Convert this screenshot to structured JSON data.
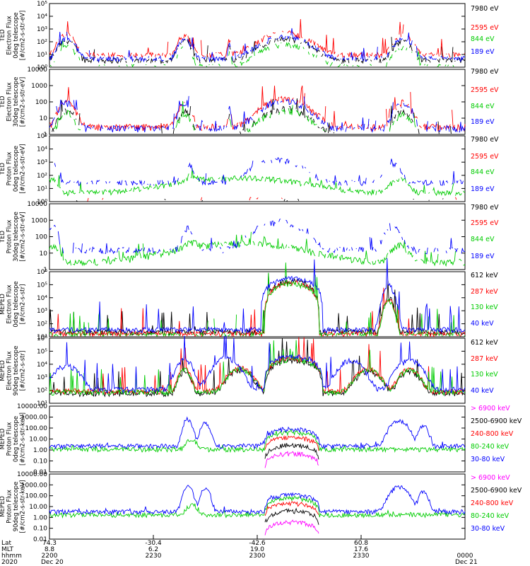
{
  "chart_data": {
    "type": "line",
    "time_axis": {
      "tick_labels": [
        "2200",
        "2230",
        "2300",
        "2330",
        "0000"
      ],
      "tick_minutes_from_2200": [
        0,
        30,
        60,
        90,
        120
      ],
      "rows": [
        {
          "label": "Lat",
          "values": [
            "74.3",
            "-30.4",
            "-42.6",
            "60.8",
            ""
          ]
        },
        {
          "label": "MLT",
          "values": [
            "8.8",
            "6.2",
            "19.0",
            "17.6",
            ""
          ]
        },
        {
          "label": "hhmm",
          "values": [
            "2200",
            "2230",
            "2300",
            "2330",
            "0000"
          ]
        }
      ],
      "date_start": "Dec 20",
      "year": "2020",
      "date_end": "Dec 21"
    },
    "panels": [
      {
        "id": "ted-e-0",
        "ylabel": [
          "TED",
          "Electron Flux",
          "0deg telescope",
          "[#/cm2-s-str-eV]"
        ],
        "scale": "log",
        "ylim": [
          1,
          100000
        ],
        "tick_labels": [
          "10⁰",
          "10¹",
          "10²",
          "10³",
          "10⁴",
          "10⁵"
        ],
        "tick_values": [
          1,
          10,
          100,
          1000,
          10000,
          100000
        ],
        "series": [
          {
            "name": "7980 eV",
            "color": "#000000",
            "kind": "electron",
            "level": 180,
            "top": 12,
            "dropout": 0.25
          },
          {
            "name": "2595 eV",
            "color": "#ff0000",
            "kind": "electron",
            "level": 500,
            "top": 18,
            "dropout": 0.2
          },
          {
            "name": "844 eV",
            "color": "#00cc00",
            "kind": "electron",
            "level": 60,
            "top": 8,
            "dropout": 0.3
          },
          {
            "name": "189 eV",
            "color": "#0000ff",
            "kind": "electron",
            "level": 250,
            "top": 6,
            "dropout": 0.2
          }
        ]
      },
      {
        "id": "ted-e-90",
        "ylabel": [
          "TED",
          "Electron Flux",
          "30deg telescope",
          "[#/cm2-s-str-eV]"
        ],
        "scale": "log",
        "ylim": [
          1,
          10000
        ],
        "tick_labels": [
          "1",
          "10",
          "100",
          "1000",
          "10000"
        ],
        "tick_values": [
          1,
          10,
          100,
          1000,
          10000
        ],
        "series": [
          {
            "name": "7980 eV",
            "color": "#000000",
            "kind": "electron",
            "level": 40,
            "top": 8,
            "dropout": 0.25
          },
          {
            "name": "2595 eV",
            "color": "#ff0000",
            "kind": "electron",
            "level": 150,
            "top": 12,
            "dropout": 0.15
          },
          {
            "name": "844 eV",
            "color": "#00cc00",
            "kind": "electron",
            "level": 30,
            "top": 6,
            "dropout": 0.2
          },
          {
            "name": "189 eV",
            "color": "#0000ff",
            "kind": "electron",
            "level": 120,
            "top": 4,
            "dropout": 0.2
          }
        ]
      },
      {
        "id": "ted-p-0",
        "ylabel": [
          "TED",
          "Proton Flux",
          "0deg telescope",
          "[#/cm2-s-str-eV]"
        ],
        "scale": "log",
        "ylim": [
          1,
          100000
        ],
        "tick_labels": [
          "10⁰",
          "10¹",
          "10²",
          "10³",
          "10⁴",
          "10⁵"
        ],
        "tick_values": [
          1,
          10,
          100,
          1000,
          10000,
          100000
        ],
        "series": [
          {
            "name": "7980 eV",
            "color": "#000000",
            "kind": "sparse",
            "level": 3,
            "top": 1,
            "dropout": 0.85
          },
          {
            "name": "2595 eV",
            "color": "#ff0000",
            "kind": "sparse",
            "level": 4,
            "top": 1,
            "dropout": 0.85
          },
          {
            "name": "844 eV",
            "color": "#00cc00",
            "kind": "proton",
            "level": 100,
            "top": 4,
            "dropout": 0.1
          },
          {
            "name": "189 eV",
            "color": "#0000ff",
            "kind": "proton-hi",
            "level": 1500,
            "top": 4,
            "dropout": 0.35
          }
        ]
      },
      {
        "id": "ted-p-90",
        "ylabel": [
          "TED",
          "Proton Flux",
          "30deg telescope",
          "[#/cm2-s-str-eV]"
        ],
        "scale": "log",
        "ylim": [
          1,
          10000
        ],
        "tick_labels": [
          "1",
          "10",
          "100",
          "1000",
          "10000"
        ],
        "tick_values": [
          1,
          10,
          100,
          1000,
          10000
        ],
        "series": [
          {
            "name": "7980 eV",
            "color": "#000000",
            "kind": "sparse",
            "level": 2,
            "top": 1,
            "dropout": 0.95
          },
          {
            "name": "2595 eV",
            "color": "#ff0000",
            "kind": "sparse",
            "level": 2,
            "top": 1,
            "dropout": 0.97
          },
          {
            "name": "844 eV",
            "color": "#00cc00",
            "kind": "proton",
            "level": 60,
            "top": 4,
            "dropout": 0.1
          },
          {
            "name": "189 eV",
            "color": "#0000ff",
            "kind": "proton-hi",
            "level": 800,
            "top": 4,
            "dropout": 0.35
          }
        ]
      },
      {
        "id": "meped-e-0",
        "ylabel": [
          "MEPED",
          "Electron Flux",
          "0deg telescope",
          "[#/cm2-s-str]"
        ],
        "scale": "log",
        "ylim": [
          10,
          1000000
        ],
        "tick_labels": [
          "10¹",
          "10²",
          "10³",
          "10⁴",
          "10⁵",
          "10⁶"
        ],
        "tick_values": [
          10,
          100,
          1000,
          10000,
          100000,
          1000000
        ],
        "series": [
          {
            "name": "612 keV",
            "color": "#000000",
            "kind": "meped",
            "level": 200000,
            "top": 60,
            "dropout": 0.0
          },
          {
            "name": "287 keV",
            "color": "#ff0000",
            "kind": "meped",
            "level": 150000,
            "top": 80,
            "dropout": 0.0
          },
          {
            "name": "130 keV",
            "color": "#00cc00",
            "kind": "meped",
            "level": 120000,
            "top": 70,
            "dropout": 0.0
          },
          {
            "name": "40 keV",
            "color": "#0000ff",
            "kind": "meped-hi",
            "level": 300000,
            "top": 100,
            "dropout": 0.0
          }
        ]
      },
      {
        "id": "meped-e-90",
        "ylabel": [
          "MEPED",
          "Electron Flux",
          "90deg telescope",
          "[#/cm2-s-str]"
        ],
        "scale": "log",
        "ylim": [
          10,
          1000000
        ],
        "tick_labels": [
          "10¹",
          "10²",
          "10³",
          "10⁴",
          "10⁵",
          "10⁶"
        ],
        "tick_values": [
          10,
          100,
          1000,
          10000,
          100000,
          1000000
        ],
        "series": [
          {
            "name": "612 keV",
            "color": "#000000",
            "kind": "meped90",
            "level": 20000,
            "top": 60,
            "dropout": 0.0
          },
          {
            "name": "287 keV",
            "color": "#ff0000",
            "kind": "meped90",
            "level": 30000,
            "top": 80,
            "dropout": 0.0
          },
          {
            "name": "130 keV",
            "color": "#00cc00",
            "kind": "meped90",
            "level": 25000,
            "top": 70,
            "dropout": 0.0
          },
          {
            "name": "40 keV",
            "color": "#0000ff",
            "kind": "meped90-hi",
            "level": 40000,
            "top": 100,
            "dropout": 0.0
          }
        ]
      },
      {
        "id": "meped-p-0",
        "ylabel": [
          "MEPED",
          "Proton Flux",
          "0deg telescope",
          "[#/cm2-s-str-keV]"
        ],
        "scale": "log",
        "ylim": [
          0.01,
          10000
        ],
        "tick_labels": [
          "0.01",
          "0.10",
          "1.00",
          "10.00",
          "100.00",
          "1000.00",
          "10000.00"
        ],
        "tick_values": [
          0.01,
          0.1,
          1,
          10,
          100,
          1000,
          10000
        ],
        "series": [
          {
            "name": "> 6900 keV",
            "color": "#ff00ff",
            "kind": "mp-arc",
            "level": 0.5,
            "top": 1,
            "dropout": 0.0
          },
          {
            "name": "2500-6900 keV",
            "color": "#000000",
            "kind": "mp-arc",
            "level": 3,
            "top": 1,
            "dropout": 0.0
          },
          {
            "name": "240-800 keV",
            "color": "#ff0000",
            "kind": "mp-arc",
            "level": 15,
            "top": 1,
            "dropout": 0.0
          },
          {
            "name": "80-240 keV",
            "color": "#00cc00",
            "kind": "mp-mid",
            "level": 40,
            "top": 1,
            "dropout": 0.0
          },
          {
            "name": "30-80 keV",
            "color": "#0000ff",
            "kind": "mp-hi",
            "level": 80,
            "top": 1,
            "dropout": 0.0
          }
        ]
      },
      {
        "id": "meped-p-90",
        "ylabel": [
          "MEPED",
          "Proton Flux",
          "90deg telescope",
          "[#/cm2-s-str-keV]"
        ],
        "scale": "log",
        "ylim": [
          0.01,
          10000
        ],
        "tick_labels": [
          "0.01",
          "0.10",
          "1.00",
          "10.00",
          "100.00",
          "1000.00",
          "10000.00"
        ],
        "tick_values": [
          0.01,
          0.1,
          1,
          10,
          100,
          1000,
          10000
        ],
        "series": [
          {
            "name": "> 6900 keV",
            "color": "#ff00ff",
            "kind": "mp-arc",
            "level": 0.4,
            "top": 1,
            "dropout": 0.0
          },
          {
            "name": "2500-6900 keV",
            "color": "#000000",
            "kind": "mp-arc",
            "level": 4,
            "top": 1,
            "dropout": 0.0
          },
          {
            "name": "240-800 keV",
            "color": "#ff0000",
            "kind": "mp-arc",
            "level": 20,
            "top": 1,
            "dropout": 0.0
          },
          {
            "name": "80-240 keV",
            "color": "#00cc00",
            "kind": "mp-mid",
            "level": 60,
            "top": 1,
            "dropout": 0.0
          },
          {
            "name": "30-80 keV",
            "color": "#0000ff",
            "kind": "mp-hi",
            "level": 120,
            "top": 1,
            "dropout": 0.0
          }
        ]
      }
    ]
  }
}
